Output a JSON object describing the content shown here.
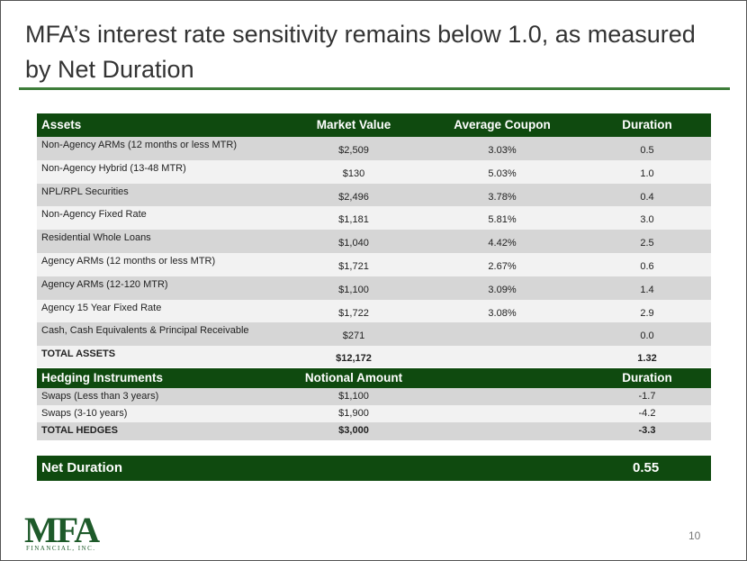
{
  "title": "MFA’s interest rate sensitivity remains below 1.0, as measured by Net Duration",
  "assets_table": {
    "header": {
      "label": "Assets",
      "market_value": "Market Value",
      "coupon": "Average Coupon",
      "duration": "Duration"
    },
    "rows": [
      {
        "label": "Non-Agency ARMs  (12 months or less MTR)",
        "market_value": "$2,509",
        "coupon": "3.03%",
        "duration": "0.5"
      },
      {
        "label": "Non-Agency Hybrid (13-48 MTR)",
        "market_value": "$130",
        "coupon": "5.03%",
        "duration": "1.0"
      },
      {
        "label": "NPL/RPL Securities",
        "market_value": "$2,496",
        "coupon": "3.78%",
        "duration": "0.4"
      },
      {
        "label": "Non-Agency Fixed Rate",
        "market_value": "$1,181",
        "coupon": "5.81%",
        "duration": "3.0"
      },
      {
        "label": "Residential Whole Loans",
        "market_value": "$1,040",
        "coupon": "4.42%",
        "duration": "2.5"
      },
      {
        "label": "Agency ARMs  (12 months or less MTR)",
        "market_value": "$1,721",
        "coupon": "2.67%",
        "duration": "0.6"
      },
      {
        "label": "Agency ARMs (12-120 MTR)",
        "market_value": "$1,100",
        "coupon": "3.09%",
        "duration": "1.4"
      },
      {
        "label": "Agency 15 Year Fixed Rate",
        "market_value": "$1,722",
        "coupon": "3.08%",
        "duration": "2.9"
      },
      {
        "label": "Cash, Cash Equivalents & Principal Receivable",
        "market_value": "$271",
        "duration": "0.0"
      }
    ],
    "total": {
      "label": "TOTAL ASSETS",
      "market_value": "$12,172",
      "duration": "1.32"
    }
  },
  "hedging_table": {
    "header": {
      "label": "Hedging Instruments",
      "market_value": "Notional Amount",
      "duration": "Duration"
    },
    "rows": [
      {
        "label": "Swaps (Less than 3 years)",
        "market_value": "$1,100",
        "duration": "-1.7"
      },
      {
        "label": "Swaps (3-10 years)",
        "market_value": "$1,900",
        "duration": "-4.2"
      }
    ],
    "total": {
      "label": "TOTAL HEDGES",
      "market_value": "$3,000",
      "duration": "-3.3"
    }
  },
  "net_duration": {
    "label": "Net Duration",
    "value": "0.55"
  },
  "logo": {
    "name": "MFA",
    "tagline": "FINANCIAL, INC."
  },
  "page_number": "10"
}
